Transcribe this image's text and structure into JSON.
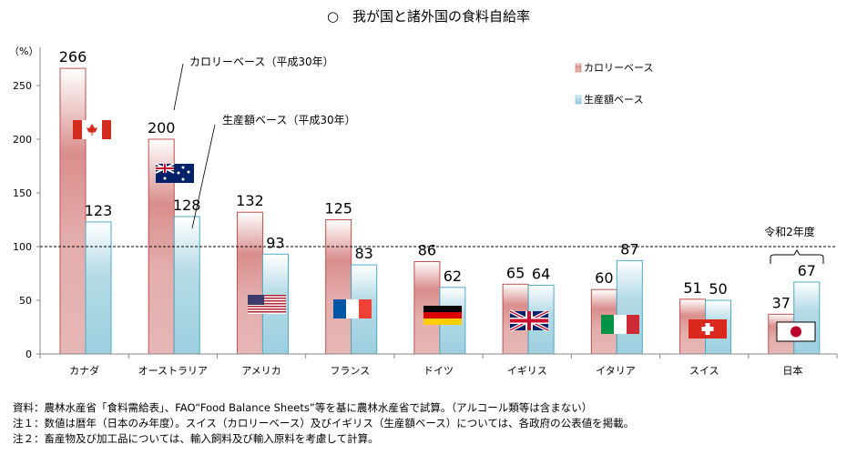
{
  "title": "○　我が国と諸外国の食料自給率",
  "chart_data": {
    "type": "bar",
    "ylabel": "（%）",
    "ylim": [
      0,
      280
    ],
    "yticks": [
      0,
      50,
      100,
      150,
      200,
      250
    ],
    "reference_line": 100,
    "grid": false,
    "legend_position": "top-right",
    "categories": [
      "カナダ",
      "オーストラリア",
      "アメリカ",
      "フランス",
      "ドイツ",
      "イギリス",
      "イタリア",
      "スイス",
      "日本"
    ],
    "flags": [
      "flag-canada",
      "flag-australia",
      "flag-usa",
      "flag-france",
      "flag-germany",
      "flag-uk",
      "flag-italy",
      "flag-switzerland",
      "flag-japan"
    ],
    "series": [
      {
        "name": "カロリーベース",
        "color": "#d98e8c",
        "values": [
          266,
          200,
          132,
          125,
          86,
          65,
          60,
          51,
          37
        ]
      },
      {
        "name": "生産額ベース",
        "color": "#a6d4e2",
        "values": [
          123,
          128,
          93,
          83,
          62,
          64,
          87,
          50,
          67
        ]
      }
    ],
    "annotations": {
      "calorie_callout": "カロリーベース（平成30年）",
      "production_callout": "生産額ベース（平成30年）",
      "japan_year": "令和2年度"
    }
  },
  "notes": [
    "資料：農林水産省「食料需給表」、FAO“Food Balance Sheets”等を基に農林水産省で試算。（アルコール類等は含まない）",
    "注１：数値は暦年（日本のみ年度）。スイス（カロリーベース）及びイギリス（生産額ベース）については、各政府の公表値を掲載。",
    "注２：畜産物及び加工品については、輸入飼料及び輸入原料を考慮して計算。"
  ]
}
